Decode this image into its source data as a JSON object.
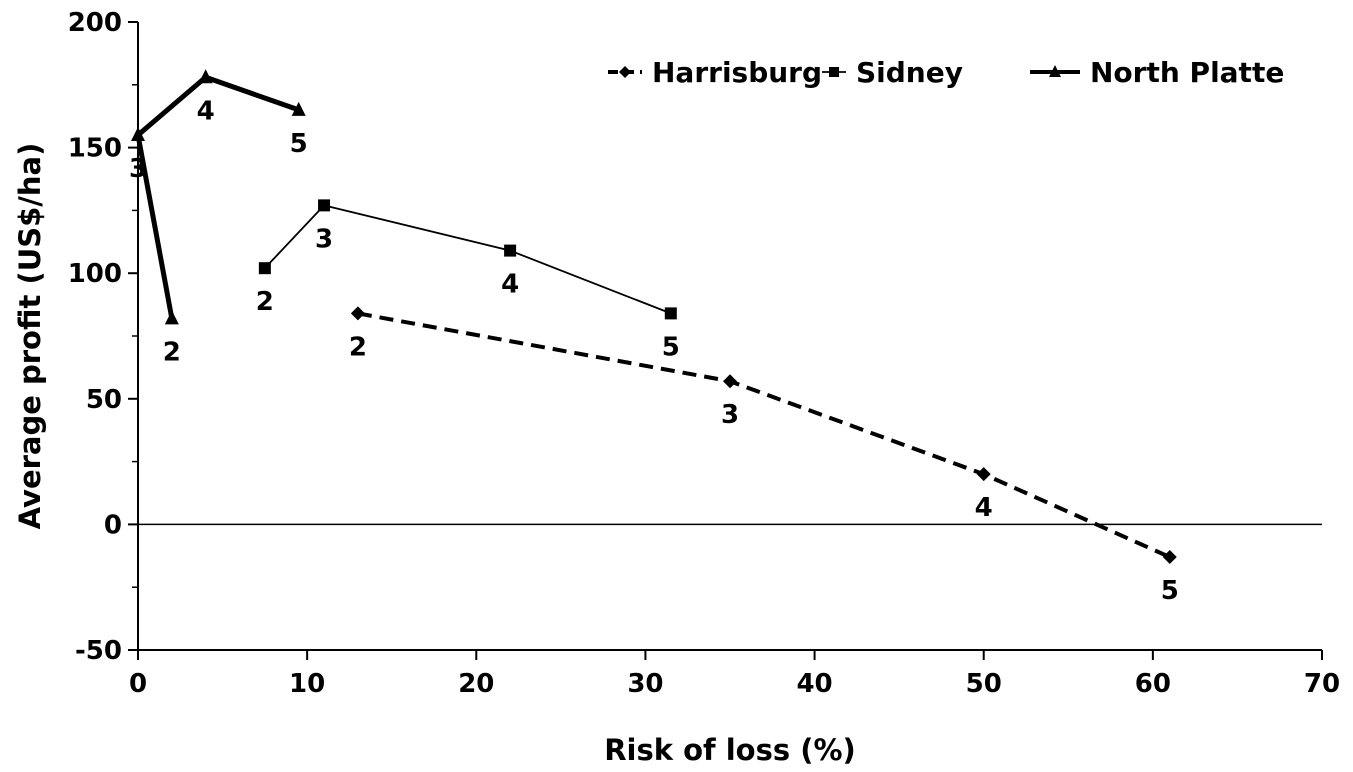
{
  "chart_data": {
    "type": "line",
    "xlabel": "Risk of loss (%)",
    "ylabel": "Average profit (US$/ha)",
    "xlim": [
      0,
      70
    ],
    "ylim": [
      -50,
      200
    ],
    "x_ticks": [
      0,
      10,
      20,
      30,
      40,
      50,
      60,
      70
    ],
    "y_ticks": [
      -50,
      0,
      50,
      100,
      150,
      200
    ],
    "grid": false,
    "legend_position": "top-right",
    "series": [
      {
        "name": "Harrisburg",
        "style": "dashed",
        "marker": "diamond",
        "color": "#000000",
        "points": [
          {
            "x": 13,
            "y": 84,
            "label": "2"
          },
          {
            "x": 35,
            "y": 57,
            "label": "3"
          },
          {
            "x": 50,
            "y": 20,
            "label": "4"
          },
          {
            "x": 61,
            "y": -13,
            "label": "5"
          }
        ]
      },
      {
        "name": "Sidney",
        "style": "thin",
        "marker": "square",
        "color": "#000000",
        "points": [
          {
            "x": 7.5,
            "y": 102,
            "label": "2"
          },
          {
            "x": 11,
            "y": 127,
            "label": "3"
          },
          {
            "x": 22,
            "y": 109,
            "label": "4"
          },
          {
            "x": 31.5,
            "y": 84,
            "label": "5"
          }
        ]
      },
      {
        "name": "North Platte",
        "style": "thick",
        "marker": "triangle",
        "color": "#000000",
        "points": [
          {
            "x": 2,
            "y": 82,
            "label": "2"
          },
          {
            "x": 0,
            "y": 155,
            "label": "3"
          },
          {
            "x": 4,
            "y": 178,
            "label": "4"
          },
          {
            "x": 9.5,
            "y": 165,
            "label": "5"
          }
        ]
      }
    ]
  }
}
